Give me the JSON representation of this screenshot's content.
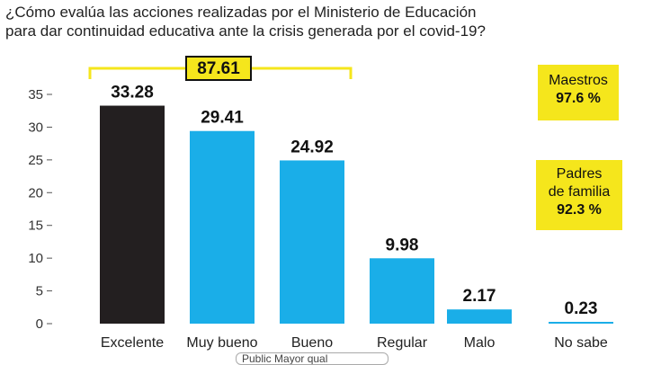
{
  "title_line1": "¿Cómo evalúa las acciones realizadas por el Ministerio de Educación",
  "title_line2": "para dar continuidad educativa ante la crisis generada por el covid-19?",
  "bracket_total": "87.61",
  "maestros": {
    "label": "Maestros",
    "value": "97.6 %"
  },
  "padres": {
    "label_line1": "Padres",
    "label_line2": "de familia",
    "value": "92.3 %"
  },
  "footer_text": "Public Mayor qual",
  "colors": {
    "excelente": "#231f20",
    "blue": "#1aaee8",
    "highlight": "#f5e61c"
  },
  "chart_data": {
    "type": "bar",
    "categories": [
      "Excelente",
      "Muy bueno",
      "Bueno",
      "Regular",
      "Malo",
      "No sabe"
    ],
    "values": [
      33.28,
      29.41,
      24.92,
      9.98,
      2.17,
      0.23
    ],
    "value_labels": [
      "33.28",
      "29.41",
      "24.92",
      "9.98",
      "2.17",
      "0.23"
    ],
    "yticks": [
      "0",
      "5",
      "10",
      "15",
      "20",
      "25",
      "30",
      "35"
    ],
    "ylim": [
      0,
      35
    ]
  }
}
